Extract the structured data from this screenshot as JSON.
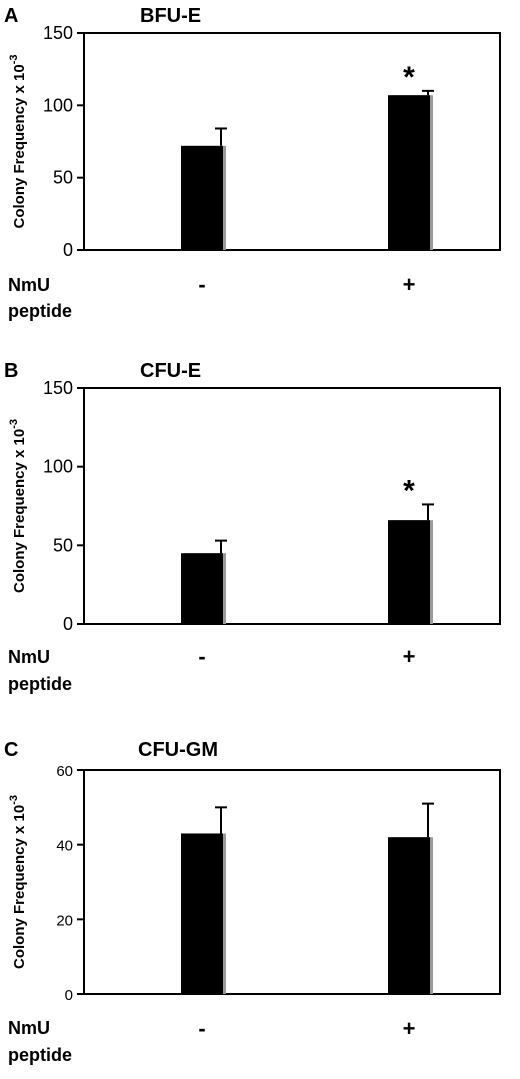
{
  "chart_data": [
    {
      "type": "bar",
      "panel": "A",
      "title": "BFU-E",
      "ylabel": "Colony Frequency x 10",
      "ylabel_sup": "-3",
      "ylim": [
        0,
        150
      ],
      "yticks": [
        0,
        50,
        100,
        150
      ],
      "x_title_lines": [
        "NmU",
        "peptide"
      ],
      "categories": [
        "-",
        "+"
      ],
      "values": [
        72,
        107
      ],
      "errors": [
        12,
        3
      ],
      "significance": [
        "",
        "*"
      ],
      "grid": false
    },
    {
      "type": "bar",
      "panel": "B",
      "title": "CFU-E",
      "ylabel": "Colony Frequency x 10",
      "ylabel_sup": "-3",
      "ylim": [
        0,
        150
      ],
      "yticks": [
        0,
        50,
        100,
        150
      ],
      "x_title_lines": [
        "NmU",
        "peptide"
      ],
      "categories": [
        "-",
        "+"
      ],
      "values": [
        45,
        66
      ],
      "errors": [
        8,
        10
      ],
      "significance": [
        "",
        "*"
      ],
      "grid": false
    },
    {
      "type": "bar",
      "panel": "C",
      "title": "CFU-GM",
      "ylabel": "Colony Frequency x 10",
      "ylabel_sup": "-3",
      "ylim": [
        0,
        60
      ],
      "yticks": [
        0,
        20,
        40,
        60
      ],
      "x_title_lines": [
        "NmU",
        "peptide"
      ],
      "categories": [
        "-",
        "+"
      ],
      "values": [
        43,
        42
      ],
      "errors": [
        7,
        9
      ],
      "significance": [
        "",
        ""
      ],
      "grid": false
    }
  ],
  "colors": {
    "bar": "#000000",
    "bar_shadow": "#9a9a9a",
    "axis": "#000000"
  }
}
